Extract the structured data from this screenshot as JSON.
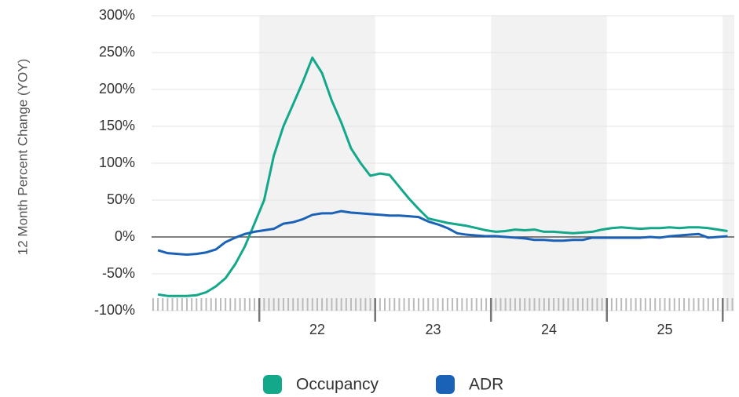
{
  "chart_data": {
    "type": "line",
    "y_label": "12 Month Percent Change (YOY)",
    "x": [
      21.125,
      21.208,
      21.292,
      21.375,
      21.458,
      21.542,
      21.625,
      21.708,
      21.792,
      21.875,
      21.958,
      22.042,
      22.125,
      22.208,
      22.292,
      22.375,
      22.458,
      22.542,
      22.625,
      22.708,
      22.792,
      22.875,
      22.958,
      23.042,
      23.125,
      23.208,
      23.292,
      23.375,
      23.458,
      23.542,
      23.625,
      23.708,
      23.792,
      23.875,
      23.958,
      24.042,
      24.125,
      24.208,
      24.292,
      24.375,
      24.458,
      24.542,
      24.625,
      24.708,
      24.792,
      24.875,
      24.958,
      25.042,
      25.125,
      25.208,
      25.292,
      25.375,
      25.458,
      25.542,
      25.625,
      25.708,
      25.792,
      25.875,
      25.958,
      26.042
    ],
    "series": [
      {
        "name": "Occupancy",
        "color": "#13a88a",
        "values": [
          -78,
          -80,
          -80,
          -80,
          -79,
          -75,
          -67,
          -56,
          -37,
          -13,
          18,
          50,
          110,
          150,
          180,
          210,
          243,
          222,
          185,
          155,
          120,
          100,
          83,
          86,
          84,
          68,
          52,
          38,
          25,
          22,
          19,
          17,
          15,
          12,
          9,
          7,
          8,
          10,
          9,
          10,
          7,
          7,
          6,
          5,
          6,
          7,
          10,
          12,
          13,
          12,
          11,
          12,
          12,
          13,
          12,
          13,
          13,
          12,
          10,
          8
        ]
      },
      {
        "name": "ADR",
        "color": "#1a62b8",
        "values": [
          -18,
          -22,
          -23,
          -24,
          -23,
          -21,
          -17,
          -7,
          -1,
          4,
          7,
          9,
          11,
          18,
          20,
          24,
          30,
          32,
          32,
          35,
          33,
          32,
          31,
          30,
          29,
          29,
          28,
          27,
          21,
          17,
          12,
          5,
          3,
          2,
          1,
          1,
          0,
          -1,
          -2,
          -4,
          -4,
          -5,
          -5,
          -4,
          -4,
          -1,
          -1,
          -1,
          -1,
          -1,
          -1,
          0,
          -1,
          1,
          2,
          3,
          4,
          -1,
          0,
          1
        ]
      }
    ],
    "xlim": [
      21.07,
      26.1
    ],
    "xticks": [
      {
        "value": 22.5,
        "label": "22"
      },
      {
        "value": 23.5,
        "label": "23"
      },
      {
        "value": 24.5,
        "label": "24"
      },
      {
        "value": 25.5,
        "label": "25"
      }
    ],
    "ylim": [
      -100,
      300
    ],
    "yticks": [
      {
        "value": -100,
        "label": "-100%"
      },
      {
        "value": -50,
        "label": "-50%"
      },
      {
        "value": 0,
        "label": "0%"
      },
      {
        "value": 50,
        "label": "50%"
      },
      {
        "value": 100,
        "label": "100%"
      },
      {
        "value": 150,
        "label": "150%"
      },
      {
        "value": 200,
        "label": "200%"
      },
      {
        "value": 250,
        "label": "250%"
      },
      {
        "value": 300,
        "label": "300%"
      }
    ],
    "legend": "bottom"
  }
}
